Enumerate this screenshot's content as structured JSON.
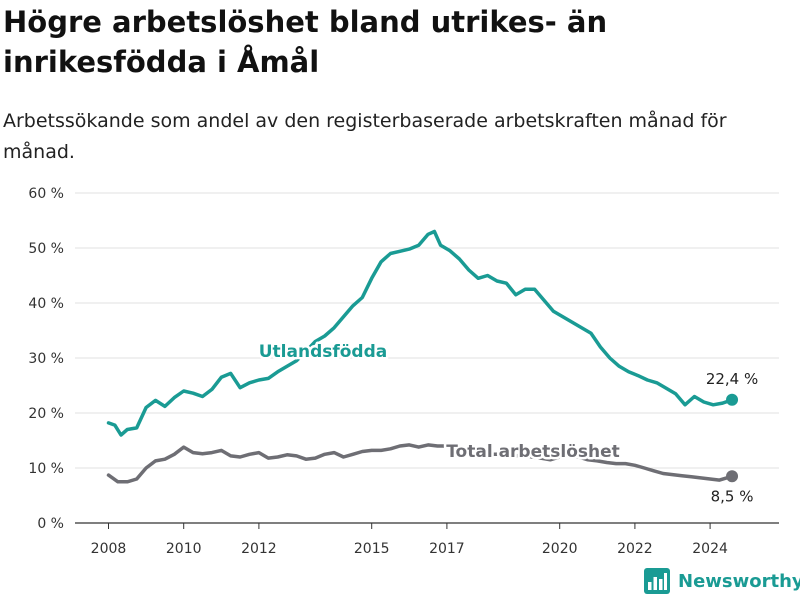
{
  "title": "Högre arbetslöshet bland utrikes- än inrikesfödda i Åmål",
  "subtitle": "Arbetssökande som andel av den registerbaserade arbetskraften månad för månad.",
  "brand": {
    "name": "Newsworthy",
    "color": "#1a9b94"
  },
  "colors": {
    "foreign": "#1a9b94",
    "total": "#6e6e74",
    "grid": "#e1e1e1",
    "axis": "#333333"
  },
  "chart_data": {
    "type": "line",
    "xlabel": "",
    "ylabel": "",
    "x_ticks": [
      "2008",
      "2010",
      "2012",
      "2015",
      "2017",
      "2020",
      "2022",
      "2024"
    ],
    "y_ticks": [
      "0 %",
      "10 %",
      "20 %",
      "30 %",
      "40 %",
      "50 %",
      "60 %"
    ],
    "xlim": [
      "2007-05",
      "2025-08"
    ],
    "ylim": [
      0,
      60
    ],
    "grid": true,
    "series": [
      {
        "name": "Utlandsfödda",
        "end_label": "22,4 %",
        "points": [
          [
            "2008-01",
            18.2
          ],
          [
            "2008-03",
            17.8
          ],
          [
            "2008-05",
            16.0
          ],
          [
            "2008-07",
            17.0
          ],
          [
            "2008-10",
            17.3
          ],
          [
            "2009-01",
            21.0
          ],
          [
            "2009-04",
            22.3
          ],
          [
            "2009-07",
            21.2
          ],
          [
            "2009-10",
            22.8
          ],
          [
            "2010-01",
            24.0
          ],
          [
            "2010-04",
            23.6
          ],
          [
            "2010-07",
            23.0
          ],
          [
            "2010-10",
            24.3
          ],
          [
            "2011-01",
            26.5
          ],
          [
            "2011-04",
            27.2
          ],
          [
            "2011-07",
            24.6
          ],
          [
            "2011-10",
            25.5
          ],
          [
            "2012-01",
            26.0
          ],
          [
            "2012-04",
            26.3
          ],
          [
            "2012-07",
            27.5
          ],
          [
            "2012-10",
            28.5
          ],
          [
            "2013-01",
            29.5
          ],
          [
            "2013-04",
            31.2
          ],
          [
            "2013-07",
            33.0
          ],
          [
            "2013-10",
            34.0
          ],
          [
            "2014-01",
            35.5
          ],
          [
            "2014-04",
            37.5
          ],
          [
            "2014-07",
            39.5
          ],
          [
            "2014-10",
            41.0
          ],
          [
            "2015-01",
            44.5
          ],
          [
            "2015-04",
            47.5
          ],
          [
            "2015-07",
            49.0
          ],
          [
            "2015-10",
            49.4
          ],
          [
            "2016-01",
            49.8
          ],
          [
            "2016-04",
            50.5
          ],
          [
            "2016-07",
            52.5
          ],
          [
            "2016-09",
            53.0
          ],
          [
            "2016-11",
            50.5
          ],
          [
            "2017-02",
            49.5
          ],
          [
            "2017-05",
            48.0
          ],
          [
            "2017-08",
            46.0
          ],
          [
            "2017-11",
            44.5
          ],
          [
            "2018-02",
            45.0
          ],
          [
            "2018-05",
            44.0
          ],
          [
            "2018-08",
            43.6
          ],
          [
            "2018-11",
            41.5
          ],
          [
            "2019-02",
            42.5
          ],
          [
            "2019-05",
            42.5
          ],
          [
            "2019-08",
            40.5
          ],
          [
            "2019-11",
            38.5
          ],
          [
            "2020-02",
            37.5
          ],
          [
            "2020-05",
            36.5
          ],
          [
            "2020-08",
            35.5
          ],
          [
            "2020-11",
            34.5
          ],
          [
            "2021-02",
            32.0
          ],
          [
            "2021-05",
            30.0
          ],
          [
            "2021-08",
            28.5
          ],
          [
            "2021-11",
            27.5
          ],
          [
            "2022-02",
            26.8
          ],
          [
            "2022-05",
            26.0
          ],
          [
            "2022-08",
            25.5
          ],
          [
            "2022-11",
            24.5
          ],
          [
            "2023-02",
            23.5
          ],
          [
            "2023-05",
            21.5
          ],
          [
            "2023-08",
            23.0
          ],
          [
            "2023-11",
            22.0
          ],
          [
            "2024-02",
            21.5
          ],
          [
            "2024-05",
            21.8
          ],
          [
            "2024-08",
            22.4
          ]
        ]
      },
      {
        "name": "Total arbetslöshet",
        "end_label": "8,5 %",
        "points": [
          [
            "2008-01",
            8.7
          ],
          [
            "2008-04",
            7.5
          ],
          [
            "2008-07",
            7.5
          ],
          [
            "2008-10",
            8.0
          ],
          [
            "2009-01",
            10.0
          ],
          [
            "2009-04",
            11.3
          ],
          [
            "2009-07",
            11.6
          ],
          [
            "2009-10",
            12.5
          ],
          [
            "2010-01",
            13.8
          ],
          [
            "2010-04",
            12.8
          ],
          [
            "2010-07",
            12.6
          ],
          [
            "2010-10",
            12.8
          ],
          [
            "2011-01",
            13.2
          ],
          [
            "2011-04",
            12.2
          ],
          [
            "2011-07",
            12.0
          ],
          [
            "2011-10",
            12.5
          ],
          [
            "2012-01",
            12.8
          ],
          [
            "2012-04",
            11.8
          ],
          [
            "2012-07",
            12.0
          ],
          [
            "2012-10",
            12.4
          ],
          [
            "2013-01",
            12.2
          ],
          [
            "2013-04",
            11.6
          ],
          [
            "2013-07",
            11.8
          ],
          [
            "2013-10",
            12.5
          ],
          [
            "2014-01",
            12.8
          ],
          [
            "2014-04",
            12.0
          ],
          [
            "2014-07",
            12.5
          ],
          [
            "2014-10",
            13.0
          ],
          [
            "2015-01",
            13.2
          ],
          [
            "2015-04",
            13.2
          ],
          [
            "2015-07",
            13.5
          ],
          [
            "2015-10",
            14.0
          ],
          [
            "2016-01",
            14.2
          ],
          [
            "2016-04",
            13.8
          ],
          [
            "2016-07",
            14.2
          ],
          [
            "2016-10",
            14.0
          ],
          [
            "2017-01",
            14.0
          ],
          [
            "2017-04",
            13.2
          ],
          [
            "2017-07",
            13.0
          ],
          [
            "2017-10",
            12.8
          ],
          [
            "2018-01",
            12.8
          ],
          [
            "2018-04",
            12.5
          ],
          [
            "2018-07",
            12.5
          ],
          [
            "2018-10",
            12.0
          ],
          [
            "2019-01",
            12.5
          ],
          [
            "2019-04",
            12.0
          ],
          [
            "2019-07",
            11.8
          ],
          [
            "2019-10",
            11.5
          ],
          [
            "2020-01",
            12.0
          ],
          [
            "2020-04",
            12.3
          ],
          [
            "2020-07",
            12.0
          ],
          [
            "2020-10",
            11.5
          ],
          [
            "2021-01",
            11.3
          ],
          [
            "2021-04",
            11.0
          ],
          [
            "2021-07",
            10.8
          ],
          [
            "2021-10",
            10.8
          ],
          [
            "2022-01",
            10.5
          ],
          [
            "2022-04",
            10.0
          ],
          [
            "2022-07",
            9.5
          ],
          [
            "2022-10",
            9.0
          ],
          [
            "2023-01",
            8.8
          ],
          [
            "2023-04",
            8.6
          ],
          [
            "2023-07",
            8.4
          ],
          [
            "2023-10",
            8.2
          ],
          [
            "2024-01",
            8.0
          ],
          [
            "2024-04",
            7.8
          ],
          [
            "2024-08",
            8.5
          ]
        ]
      }
    ]
  }
}
